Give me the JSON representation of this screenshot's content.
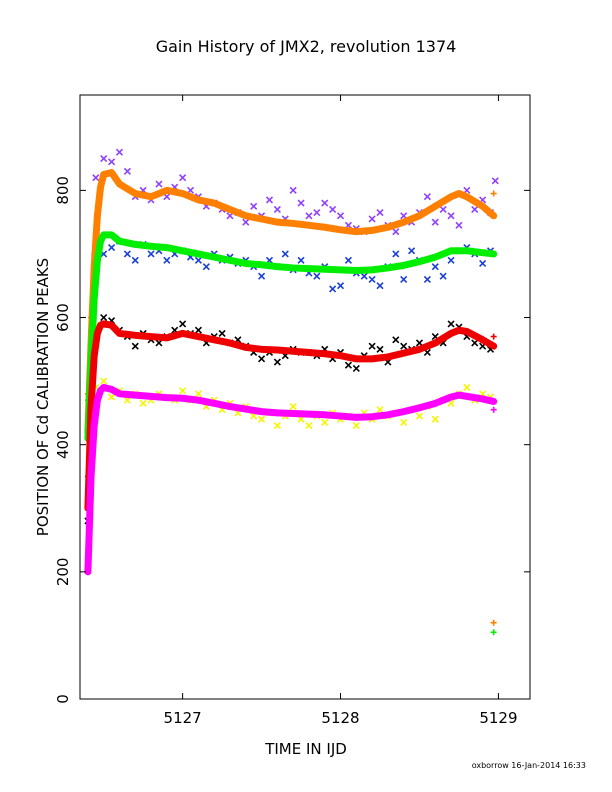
{
  "chart_data": {
    "type": "scatter",
    "title": "Gain History of JMX2, revolution 1374",
    "xlabel": "TIME IN IJD",
    "ylabel": "POSITION OF Cd CALIBRATION PEAKS",
    "xlim": [
      5126.35,
      5129.2
    ],
    "ylim": [
      0,
      950
    ],
    "xticks": [
      5127,
      5128,
      5129
    ],
    "yticks": [
      0,
      200,
      400,
      600,
      800
    ],
    "footer": "oxborrow 16-Jan-2014 16:33",
    "grid": false,
    "legend": "none",
    "colors": {
      "orange": "#ff8000",
      "green": "#00ee00",
      "red": "#ee0000",
      "magenta": "#ff00ff",
      "purple": "#9040ff",
      "blue": "#1a3fd6",
      "black": "#000000",
      "yellow": "#f5f500"
    },
    "series": [
      {
        "color": "#ff8000",
        "marker": "line",
        "x": [
          5126.4,
          5126.42,
          5126.44,
          5126.46,
          5126.48,
          5126.5,
          5126.55,
          5126.6,
          5126.7,
          5126.8,
          5126.9,
          5127.0,
          5127.1,
          5127.2,
          5127.3,
          5127.4,
          5127.5,
          5127.6,
          5127.7,
          5127.8,
          5127.9,
          5128.0,
          5128.1,
          5128.2,
          5128.3,
          5128.4,
          5128.5,
          5128.6,
          5128.7,
          5128.75,
          5128.8,
          5128.9,
          5128.97
        ],
        "y": [
          420,
          560,
          680,
          760,
          805,
          825,
          828,
          810,
          795,
          790,
          800,
          795,
          785,
          780,
          770,
          760,
          755,
          750,
          748,
          745,
          742,
          738,
          735,
          737,
          742,
          750,
          760,
          775,
          790,
          795,
          790,
          775,
          760
        ]
      },
      {
        "color": "#00ee00",
        "marker": "line",
        "x": [
          5126.4,
          5126.42,
          5126.44,
          5126.46,
          5126.48,
          5126.5,
          5126.55,
          5126.6,
          5126.7,
          5126.8,
          5126.9,
          5127.0,
          5127.1,
          5127.2,
          5127.3,
          5127.4,
          5127.5,
          5127.6,
          5127.7,
          5127.8,
          5127.9,
          5128.0,
          5128.1,
          5128.2,
          5128.3,
          5128.4,
          5128.5,
          5128.6,
          5128.7,
          5128.8,
          5128.9,
          5128.97
        ],
        "y": [
          410,
          530,
          630,
          690,
          720,
          730,
          730,
          720,
          715,
          712,
          710,
          705,
          700,
          695,
          690,
          685,
          683,
          680,
          678,
          677,
          676,
          675,
          674,
          675,
          678,
          682,
          688,
          695,
          705,
          705,
          702,
          700
        ]
      },
      {
        "color": "#ee0000",
        "marker": "line",
        "x": [
          5126.4,
          5126.42,
          5126.44,
          5126.46,
          5126.48,
          5126.5,
          5126.55,
          5126.6,
          5126.7,
          5126.8,
          5126.9,
          5127.0,
          5127.1,
          5127.2,
          5127.3,
          5127.4,
          5127.5,
          5127.6,
          5127.7,
          5127.8,
          5127.9,
          5128.0,
          5128.1,
          5128.2,
          5128.3,
          5128.4,
          5128.5,
          5128.6,
          5128.7,
          5128.75,
          5128.8,
          5128.9,
          5128.97
        ],
        "y": [
          300,
          460,
          540,
          575,
          588,
          590,
          588,
          575,
          572,
          570,
          568,
          575,
          570,
          565,
          560,
          553,
          550,
          549,
          547,
          545,
          543,
          540,
          535,
          535,
          538,
          544,
          550,
          560,
          575,
          580,
          578,
          565,
          555
        ]
      },
      {
        "color": "#ff00ff",
        "marker": "line",
        "x": [
          5126.4,
          5126.42,
          5126.44,
          5126.46,
          5126.48,
          5126.5,
          5126.55,
          5126.6,
          5126.7,
          5126.8,
          5126.9,
          5127.0,
          5127.1,
          5127.2,
          5127.3,
          5127.4,
          5127.5,
          5127.6,
          5127.7,
          5127.8,
          5127.9,
          5128.0,
          5128.1,
          5128.2,
          5128.3,
          5128.4,
          5128.5,
          5128.6,
          5128.7,
          5128.75,
          5128.8,
          5128.9,
          5128.97
        ],
        "y": [
          200,
          350,
          430,
          470,
          485,
          490,
          487,
          480,
          478,
          476,
          474,
          473,
          470,
          465,
          460,
          456,
          452,
          450,
          449,
          448,
          447,
          445,
          443,
          444,
          447,
          452,
          458,
          465,
          475,
          478,
          476,
          472,
          468
        ]
      },
      {
        "color": "#ff8000",
        "marker": "plus",
        "x": [
          5126.4,
          5126.42,
          5126.44,
          5126.46,
          5126.48,
          5128.97,
          5128.97
        ],
        "y": [
          480,
          600,
          700,
          760,
          800,
          795,
          120
        ]
      },
      {
        "color": "#00ee00",
        "marker": "plus",
        "x": [
          5126.4,
          5126.42,
          5126.44,
          5126.46,
          5128.97,
          5128.97
        ],
        "y": [
          470,
          580,
          660,
          700,
          700,
          105
        ]
      },
      {
        "color": "#ee0000",
        "marker": "plus",
        "x": [
          5126.4,
          5126.42,
          5126.44,
          5126.46,
          5128.97
        ],
        "y": [
          350,
          480,
          550,
          580,
          570
        ]
      },
      {
        "color": "#ff00ff",
        "marker": "plus",
        "x": [
          5126.4,
          5126.41,
          5126.42,
          5126.43,
          5126.44,
          5126.45,
          5126.46,
          5128.97
        ],
        "y": [
          200,
          260,
          320,
          380,
          420,
          450,
          470,
          455
        ]
      },
      {
        "color": "#9040ff",
        "marker": "x",
        "x": [
          5126.45,
          5126.5,
          5126.55,
          5126.6,
          5126.65,
          5126.7,
          5126.75,
          5126.8,
          5126.85,
          5126.9,
          5126.95,
          5127.0,
          5127.05,
          5127.1,
          5127.15,
          5127.2,
          5127.25,
          5127.3,
          5127.35,
          5127.4,
          5127.45,
          5127.5,
          5127.55,
          5127.6,
          5127.65,
          5127.7,
          5127.75,
          5127.8,
          5127.85,
          5127.9,
          5127.95,
          5128.0,
          5128.05,
          5128.1,
          5128.15,
          5128.2,
          5128.25,
          5128.3,
          5128.35,
          5128.4,
          5128.45,
          5128.5,
          5128.55,
          5128.6,
          5128.65,
          5128.7,
          5128.75,
          5128.8,
          5128.85,
          5128.9,
          5128.95,
          5128.98
        ],
        "y": [
          820,
          850,
          845,
          860,
          830,
          790,
          800,
          785,
          810,
          790,
          805,
          820,
          800,
          790,
          775,
          780,
          770,
          760,
          765,
          750,
          775,
          760,
          785,
          770,
          755,
          800,
          780,
          760,
          765,
          780,
          770,
          760,
          745,
          740,
          735,
          755,
          765,
          745,
          735,
          760,
          750,
          765,
          790,
          750,
          770,
          760,
          745,
          800,
          770,
          785,
          765,
          815
        ]
      },
      {
        "color": "#1a3fd6",
        "marker": "x",
        "x": [
          5126.5,
          5126.55,
          5126.6,
          5126.65,
          5126.7,
          5126.75,
          5126.8,
          5126.85,
          5126.9,
          5126.95,
          5127.0,
          5127.05,
          5127.1,
          5127.15,
          5127.2,
          5127.25,
          5127.3,
          5127.35,
          5127.4,
          5127.45,
          5127.5,
          5127.55,
          5127.6,
          5127.65,
          5127.7,
          5127.75,
          5127.8,
          5127.85,
          5127.9,
          5127.95,
          5128.0,
          5128.05,
          5128.1,
          5128.15,
          5128.2,
          5128.25,
          5128.3,
          5128.35,
          5128.4,
          5128.45,
          5128.5,
          5128.55,
          5128.6,
          5128.65,
          5128.7,
          5128.75,
          5128.8,
          5128.85,
          5128.9,
          5128.95
        ],
        "y": [
          700,
          710,
          720,
          700,
          690,
          715,
          700,
          705,
          690,
          700,
          705,
          695,
          690,
          680,
          700,
          690,
          695,
          685,
          690,
          680,
          665,
          690,
          680,
          700,
          675,
          690,
          670,
          665,
          680,
          645,
          650,
          690,
          670,
          665,
          660,
          650,
          680,
          700,
          660,
          705,
          690,
          660,
          680,
          665,
          690,
          705,
          710,
          700,
          685,
          705
        ]
      },
      {
        "color": "#000000",
        "marker": "x",
        "x": [
          5126.4,
          5126.45,
          5126.5,
          5126.55,
          5126.6,
          5126.65,
          5126.7,
          5126.75,
          5126.8,
          5126.85,
          5126.9,
          5126.95,
          5127.0,
          5127.05,
          5127.1,
          5127.15,
          5127.2,
          5127.25,
          5127.3,
          5127.35,
          5127.4,
          5127.45,
          5127.5,
          5127.55,
          5127.6,
          5127.65,
          5127.7,
          5127.75,
          5127.8,
          5127.85,
          5127.9,
          5127.95,
          5128.0,
          5128.05,
          5128.1,
          5128.15,
          5128.2,
          5128.25,
          5128.3,
          5128.35,
          5128.4,
          5128.45,
          5128.5,
          5128.55,
          5128.6,
          5128.65,
          5128.7,
          5128.75,
          5128.8,
          5128.85,
          5128.9,
          5128.95
        ],
        "y": [
          280,
          560,
          600,
          595,
          580,
          570,
          555,
          575,
          565,
          560,
          570,
          580,
          590,
          575,
          580,
          560,
          570,
          575,
          560,
          565,
          555,
          545,
          535,
          545,
          530,
          540,
          550,
          545,
          545,
          540,
          550,
          535,
          545,
          525,
          520,
          540,
          555,
          550,
          530,
          565,
          555,
          550,
          560,
          545,
          570,
          560,
          590,
          585,
          570,
          560,
          555,
          550
        ]
      },
      {
        "color": "#f5f500",
        "marker": "x",
        "x": [
          5126.45,
          5126.5,
          5126.55,
          5126.6,
          5126.65,
          5126.7,
          5126.75,
          5126.8,
          5126.85,
          5126.9,
          5126.95,
          5127.0,
          5127.05,
          5127.1,
          5127.15,
          5127.2,
          5127.25,
          5127.3,
          5127.35,
          5127.4,
          5127.45,
          5127.5,
          5127.55,
          5127.6,
          5127.65,
          5127.7,
          5127.75,
          5127.8,
          5127.85,
          5127.9,
          5127.95,
          5128.0,
          5128.05,
          5128.1,
          5128.15,
          5128.2,
          5128.25,
          5128.3,
          5128.35,
          5128.4,
          5128.45,
          5128.5,
          5128.55,
          5128.6,
          5128.65,
          5128.7,
          5128.75,
          5128.8,
          5128.85,
          5128.9,
          5128.95
        ],
        "y": [
          490,
          500,
          475,
          485,
          470,
          480,
          465,
          470,
          480,
          475,
          470,
          485,
          470,
          480,
          460,
          470,
          455,
          465,
          450,
          460,
          445,
          440,
          450,
          430,
          445,
          460,
          440,
          430,
          445,
          435,
          450,
          440,
          445,
          430,
          450,
          440,
          455,
          445,
          450,
          435,
          455,
          445,
          460,
          440,
          470,
          465,
          480,
          490,
          470,
          480,
          475
        ]
      }
    ]
  }
}
